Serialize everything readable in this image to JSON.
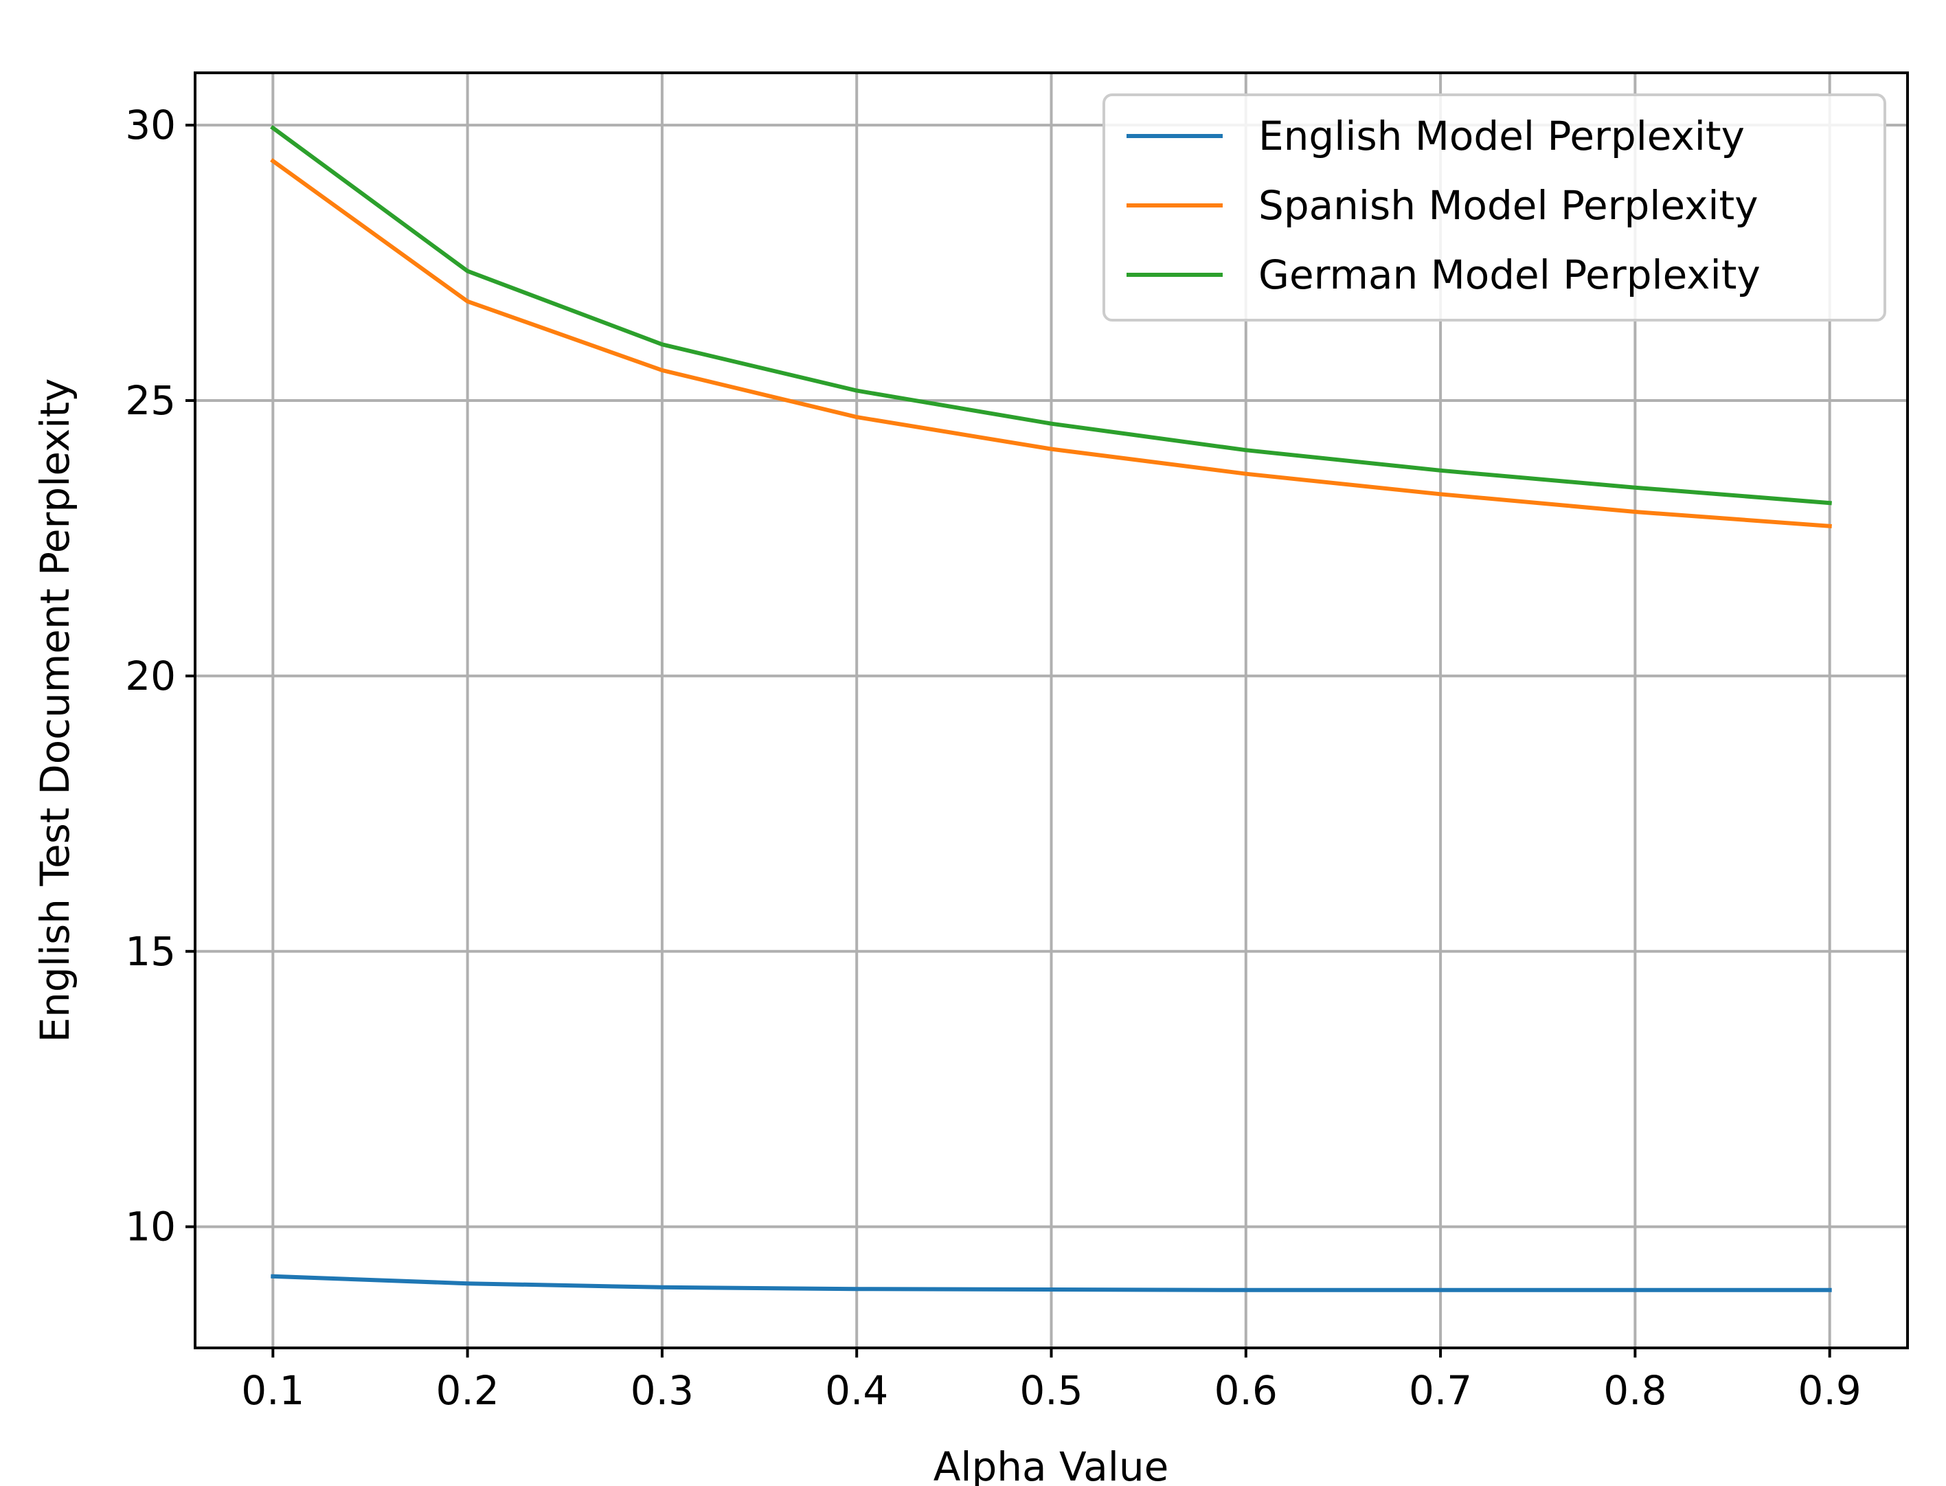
{
  "chart_data": {
    "type": "line",
    "title": "",
    "xlabel": "Alpha Value",
    "ylabel": "English Test Document Perplexity",
    "x": [
      0.1,
      0.2,
      0.3,
      0.4,
      0.5,
      0.6,
      0.7,
      0.8,
      0.9
    ],
    "xlim": [
      0.06,
      0.94
    ],
    "ylim": [
      7.8,
      30.95
    ],
    "xticks": [
      0.1,
      0.2,
      0.3,
      0.4,
      0.5,
      0.6,
      0.7,
      0.8,
      0.9
    ],
    "xtick_labels": [
      "0.1",
      "0.2",
      "0.3",
      "0.4",
      "0.5",
      "0.6",
      "0.7",
      "0.8",
      "0.9"
    ],
    "yticks": [
      10,
      15,
      20,
      25,
      30
    ],
    "ytick_labels": [
      "10",
      "15",
      "20",
      "25",
      "30"
    ],
    "grid": true,
    "legend_position": "top-right",
    "series": [
      {
        "name": "English Model Perplexity",
        "color": "#1f77b4",
        "values": [
          9.1,
          8.97,
          8.9,
          8.87,
          8.86,
          8.85,
          8.85,
          8.85,
          8.85
        ]
      },
      {
        "name": "Spanish Model Perplexity",
        "color": "#ff7f0e",
        "values": [
          29.35,
          26.8,
          25.55,
          24.7,
          24.12,
          23.67,
          23.3,
          22.98,
          22.72
        ]
      },
      {
        "name": "German Model Perplexity",
        "color": "#2ca02c",
        "values": [
          29.95,
          27.35,
          26.02,
          25.18,
          24.58,
          24.1,
          23.73,
          23.42,
          23.14
        ]
      }
    ]
  }
}
